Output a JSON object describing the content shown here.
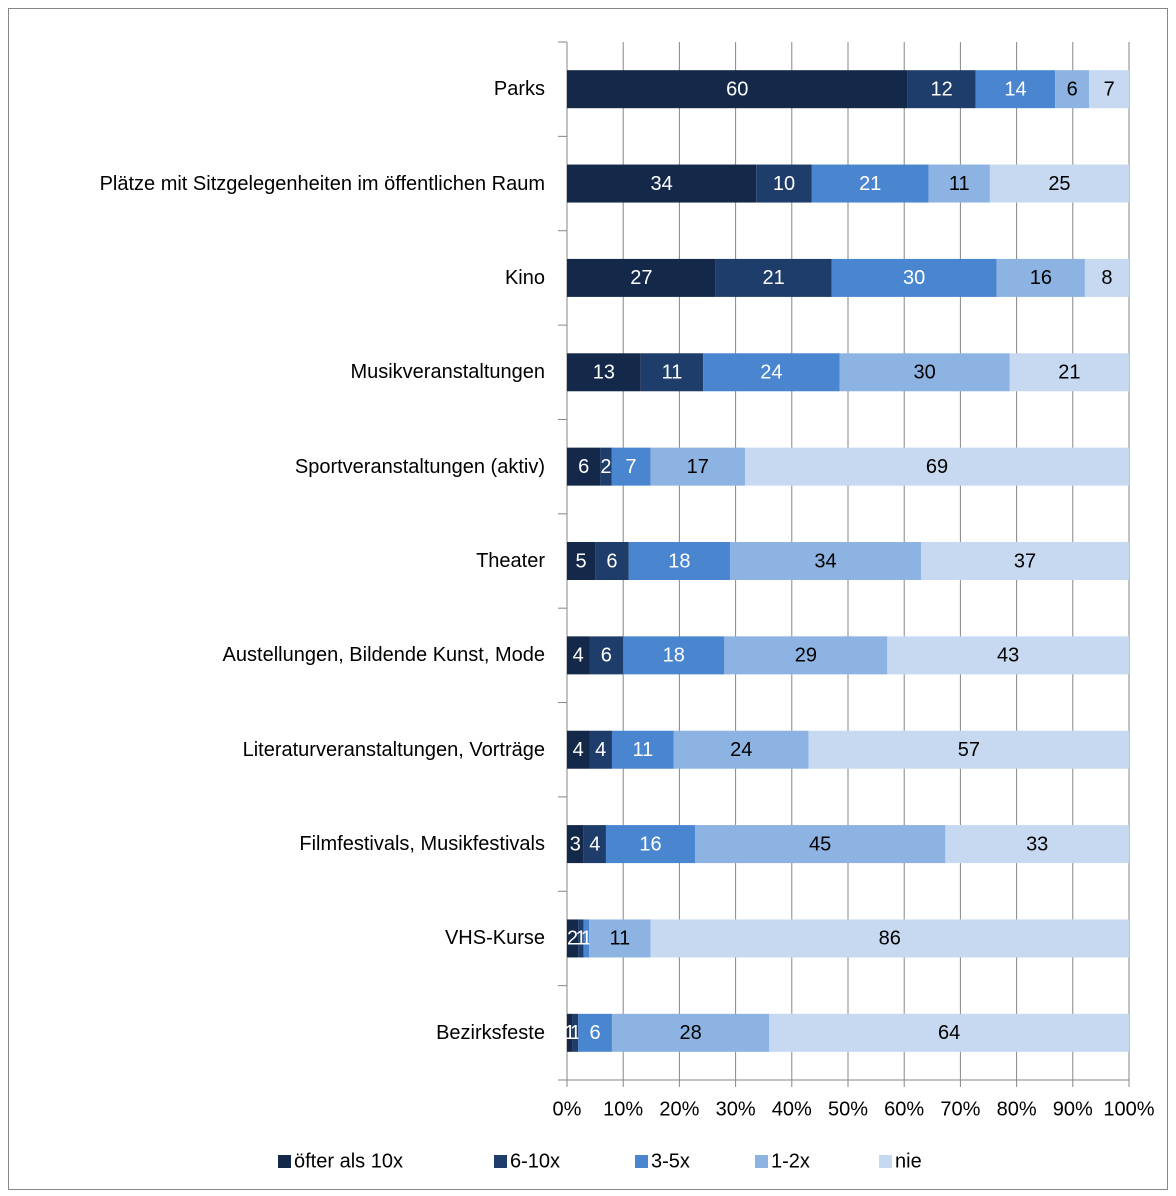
{
  "chart_data": {
    "type": "bar",
    "orientation": "horizontal",
    "stacked": "percent",
    "categories": [
      "Parks",
      "Plätze mit Sitzgelegenheiten im öffentlichen Raum",
      "Kino",
      "Musikveranstaltungen",
      "Sportveranstaltungen (aktiv)",
      "Theater",
      "Austellungen, Bildende Kunst, Mode",
      "Literaturveranstaltungen, Vorträge",
      "Filmfestivals, Musikfestivals",
      "VHS-Kurse",
      "Bezirksfeste"
    ],
    "series": [
      {
        "name": "öfter als 10x",
        "color": "#14294a",
        "values": [
          60,
          34,
          27,
          13,
          6,
          5,
          4,
          4,
          3,
          2,
          1
        ]
      },
      {
        "name": "6-10x",
        "color": "#1f3d6b",
        "values": [
          12,
          10,
          21,
          11,
          2,
          6,
          6,
          4,
          4,
          1,
          1
        ]
      },
      {
        "name": "3-5x",
        "color": "#4a86d0",
        "values": [
          14,
          21,
          30,
          24,
          7,
          18,
          18,
          11,
          16,
          1,
          6
        ]
      },
      {
        "name": "1-2x",
        "color": "#8db3e2",
        "values": [
          6,
          11,
          16,
          30,
          17,
          34,
          29,
          24,
          45,
          11,
          28
        ]
      },
      {
        "name": "nie",
        "color": "#c6d9f1",
        "values": [
          7,
          25,
          8,
          21,
          69,
          37,
          43,
          57,
          33,
          86,
          64
        ]
      }
    ],
    "xlim": [
      0,
      100
    ],
    "xticks": [
      {
        "value": 0,
        "label": "0%"
      },
      {
        "value": 10,
        "label": "10%"
      },
      {
        "value": 20,
        "label": "20%"
      },
      {
        "value": 30,
        "label": "30%"
      },
      {
        "value": 40,
        "label": "40%"
      },
      {
        "value": 50,
        "label": "50%"
      },
      {
        "value": 60,
        "label": "60%"
      },
      {
        "value": 70,
        "label": "70%"
      },
      {
        "value": 80,
        "label": "80%"
      },
      {
        "value": 90,
        "label": "90%"
      },
      {
        "value": 100,
        "label": "100%"
      }
    ],
    "grid": true,
    "legend": "bottom"
  }
}
